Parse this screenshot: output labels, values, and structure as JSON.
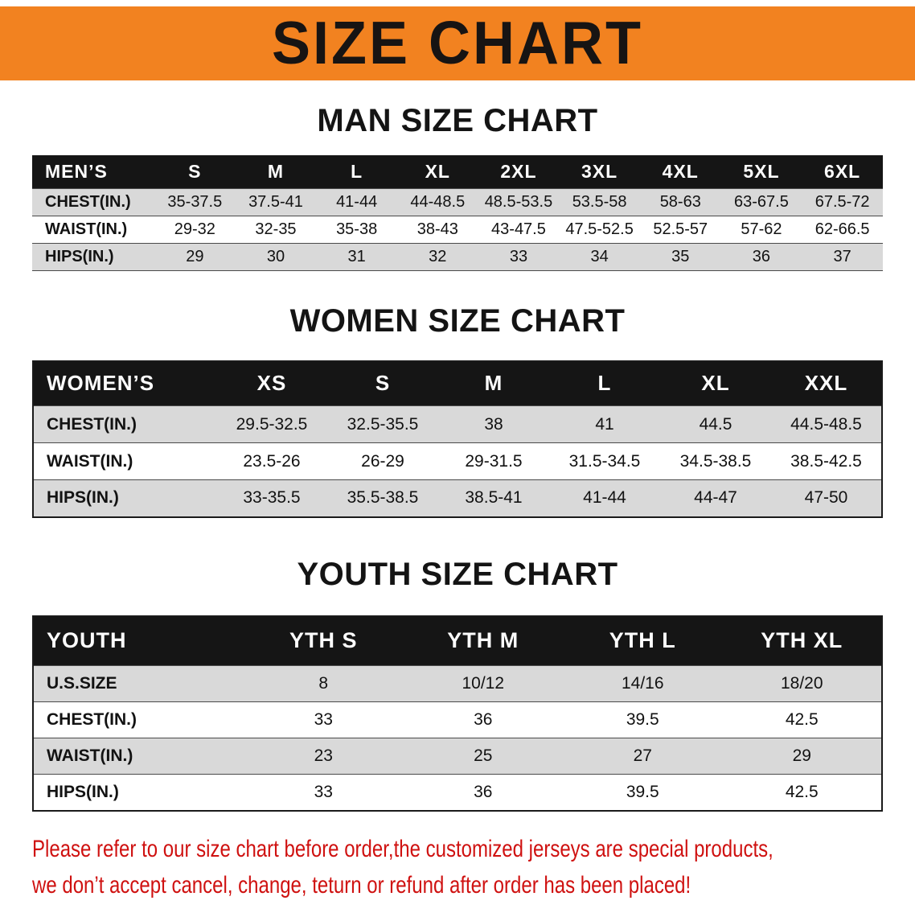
{
  "banner": {
    "title": "SIZE CHART"
  },
  "colors": {
    "banner_orange": "#f28220",
    "table_header_black": "#151515",
    "row_shade_gray": "#d9d9d9",
    "disclaimer_red": "#cf1110"
  },
  "sections": [
    {
      "id": "men",
      "heading": "MAN SIZE CHART",
      "header": [
        "MEN’S",
        "S",
        "M",
        "L",
        "XL",
        "2XL",
        "3XL",
        "4XL",
        "5XL",
        "6XL"
      ],
      "rows": [
        {
          "label": "CHEST(IN.)",
          "values": [
            "35-37.5",
            "37.5-41",
            "41-44",
            "44-48.5",
            "48.5-53.5",
            "53.5-58",
            "58-63",
            "63-67.5",
            "67.5-72"
          ]
        },
        {
          "label": "WAIST(IN.)",
          "values": [
            "29-32",
            "32-35",
            "35-38",
            "38-43",
            "43-47.5",
            "47.5-52.5",
            "52.5-57",
            "57-62",
            "62-66.5"
          ]
        },
        {
          "label": "HIPS(IN.)",
          "values": [
            "29",
            "30",
            "31",
            "32",
            "33",
            "34",
            "35",
            "36",
            "37"
          ]
        }
      ]
    },
    {
      "id": "women",
      "heading": "WOMEN SIZE CHART",
      "header": [
        "WOMEN’S",
        "XS",
        "S",
        "M",
        "L",
        "XL",
        "XXL"
      ],
      "rows": [
        {
          "label": "CHEST(IN.)",
          "values": [
            "29.5-32.5",
            "32.5-35.5",
            "38",
            "41",
            "44.5",
            "44.5-48.5"
          ]
        },
        {
          "label": "WAIST(IN.)",
          "values": [
            "23.5-26",
            "26-29",
            "29-31.5",
            "31.5-34.5",
            "34.5-38.5",
            "38.5-42.5"
          ]
        },
        {
          "label": "HIPS(IN.)",
          "values": [
            "33-35.5",
            "35.5-38.5",
            "38.5-41",
            "41-44",
            "44-47",
            "47-50"
          ]
        }
      ]
    },
    {
      "id": "youth",
      "heading": "YOUTH SIZE CHART",
      "header": [
        "YOUTH",
        "YTH S",
        "YTH M",
        "YTH L",
        "YTH XL"
      ],
      "rows": [
        {
          "label": "U.S.SIZE",
          "values": [
            "8",
            "10/12",
            "14/16",
            "18/20"
          ]
        },
        {
          "label": "CHEST(IN.)",
          "values": [
            "33",
            "36",
            "39.5",
            "42.5"
          ]
        },
        {
          "label": "WAIST(IN.)",
          "values": [
            "23",
            "25",
            "27",
            "29"
          ]
        },
        {
          "label": "HIPS(IN.)",
          "values": [
            "33",
            "36",
            "39.5",
            "42.5"
          ]
        }
      ]
    }
  ],
  "footer": {
    "line1": "Please refer to our size chart before order,the customized jerseys are special products,",
    "line2": "we don’t accept cancel, change, teturn or refund after order has been placed!"
  }
}
